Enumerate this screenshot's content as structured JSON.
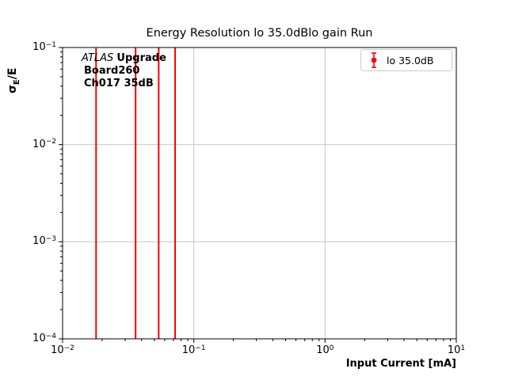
{
  "title": "Energy Resolution lo 35.0dBlo gain Run",
  "axes": {
    "xlabel": "Input Current [mA]",
    "ylabel": "σE/E",
    "ylabel_parts": {
      "sigma": "σ",
      "sub": "E",
      "rest": "/E"
    }
  },
  "annotation": {
    "atlas": "ATLAS",
    "upgrade": "Upgrade",
    "board": "Board260",
    "channel": "Ch017 35dB"
  },
  "legend": {
    "entries": [
      {
        "label": "lo 35.0dB",
        "color": "#ff0000",
        "marker": "errorbar-circle"
      }
    ]
  },
  "chart_data": {
    "type": "scatter",
    "title": "Energy Resolution lo 35.0dBlo gain Run",
    "xlabel": "Input Current [mA]",
    "ylabel": "σE/E",
    "xscale": "log",
    "yscale": "log",
    "xlim": [
      0.01,
      10
    ],
    "ylim": [
      0.0001,
      0.1
    ],
    "grid": true,
    "grid_color": "#c8c8c8",
    "legend_position": "upper right",
    "tick_base": "10",
    "x_tick_exponents": [
      -2,
      -1,
      0,
      1
    ],
    "y_tick_exponents": [
      -1,
      -2,
      -3,
      -4
    ],
    "series": [
      {
        "name": "lo 35.0dB",
        "color": "#ff0000",
        "marker": "circle with vertical error bars",
        "x": [
          0.018,
          0.036,
          0.054,
          0.072
        ],
        "note": "vertical red error-bar lines span the entire visible y-range 1e-4 to 1e-1; marker centers not visible inside axes"
      }
    ]
  }
}
